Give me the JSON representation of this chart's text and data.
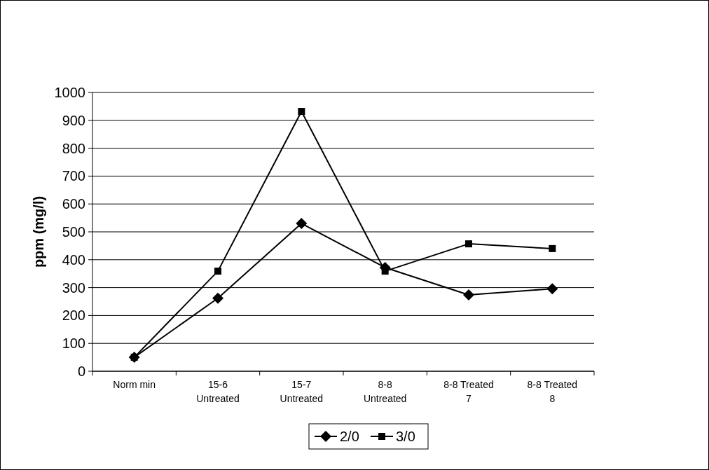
{
  "chart_data": {
    "type": "line",
    "ylabel": "ppm (mg/l)",
    "categories": [
      "Norm min",
      "15-6 Untreated",
      "15-7 Untreated",
      "8-8 Untreated",
      "8-8 Treated 7",
      "8-8 Treated 8"
    ],
    "series": [
      {
        "name": "2/0",
        "color": "#000000",
        "marker": "diamond",
        "values": [
          50,
          262,
          530,
          372,
          274,
          296
        ]
      },
      {
        "name": "3/0",
        "color": "#000000",
        "marker": "square",
        "values": [
          50,
          359,
          932,
          359,
          457,
          440
        ]
      }
    ],
    "ylim": [
      0,
      1000
    ],
    "yticks": [
      0,
      100,
      200,
      300,
      400,
      500,
      600,
      700,
      800,
      900,
      1000
    ],
    "grid": "y",
    "legend": "bottom",
    "line_style": "solid"
  }
}
